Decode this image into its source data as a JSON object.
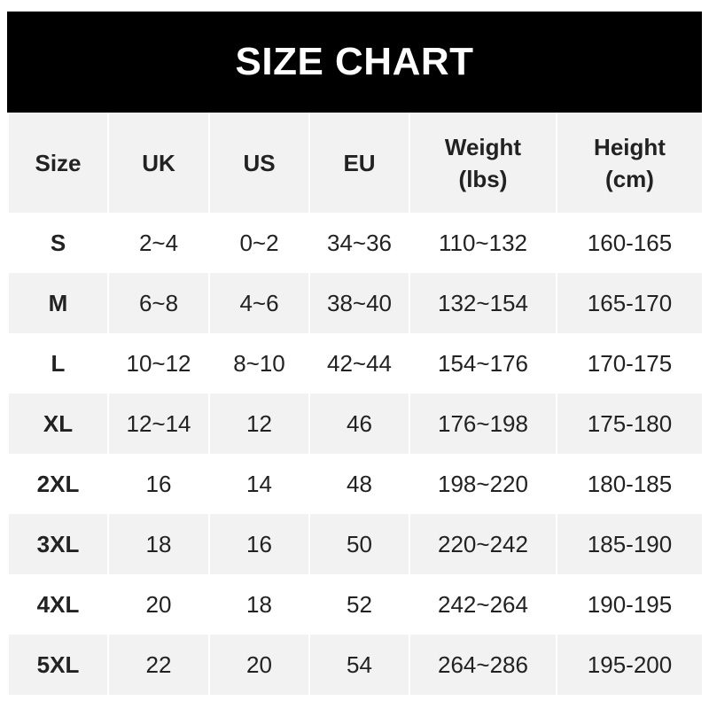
{
  "title": "SIZE CHART",
  "chart_data": {
    "type": "table",
    "title": "SIZE CHART",
    "columns": [
      "Size",
      "UK",
      "US",
      "EU",
      "Weight\n(lbs)",
      "Height\n(cm)"
    ],
    "rows": [
      [
        "S",
        "2~4",
        "0~2",
        "34~36",
        "110~132",
        "160-165"
      ],
      [
        "M",
        "6~8",
        "4~6",
        "38~40",
        "132~154",
        "165-170"
      ],
      [
        "L",
        "10~12",
        "8~10",
        "42~44",
        "154~176",
        "170-175"
      ],
      [
        "XL",
        "12~14",
        "12",
        "46",
        "176~198",
        "175-180"
      ],
      [
        "2XL",
        "16",
        "14",
        "48",
        "198~220",
        "180-185"
      ],
      [
        "3XL",
        "18",
        "16",
        "50",
        "220~242",
        "185-190"
      ],
      [
        "4XL",
        "20",
        "18",
        "52",
        "242~264",
        "190-195"
      ],
      [
        "5XL",
        "22",
        "20",
        "54",
        "264~286",
        "195-200"
      ]
    ]
  },
  "colors": {
    "title_bg": "#000000",
    "title_text": "#ffffff",
    "stripe": "#f2f2f2",
    "text": "#222222"
  }
}
